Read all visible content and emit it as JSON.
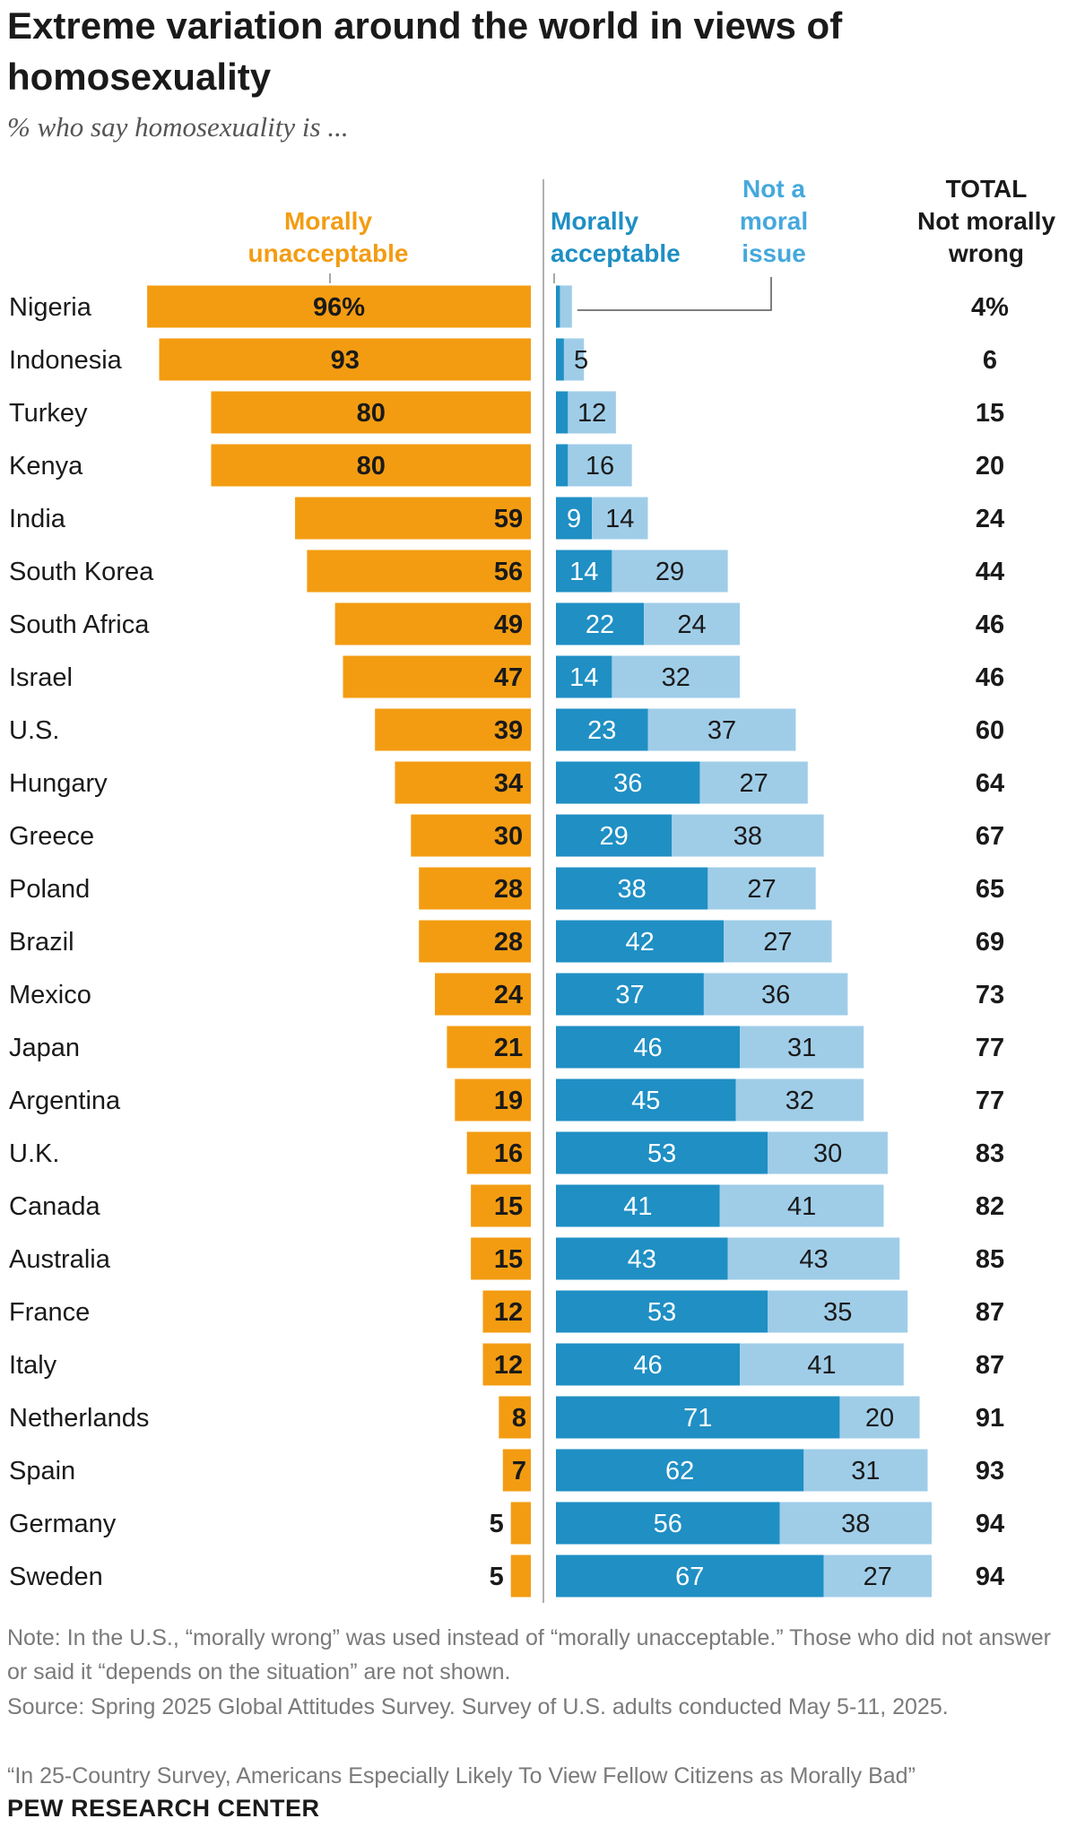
{
  "title": "Extreme variation around the world in views of homosexuality",
  "subtitle": "% who say homosexuality is ...",
  "colors": {
    "unacceptable": "#F39C12",
    "acceptable": "#1F8FC4",
    "not_moral_issue": "#9FCDE8",
    "unacceptable_text": "#F39C12",
    "acceptable_text": "#1F8FC4",
    "not_moral_issue_text": "#45A8DD"
  },
  "chart_data": {
    "type": "bar",
    "layout": "diverging stacked horizontal bar",
    "headers": {
      "unacceptable": [
        "Morally",
        "unacceptable"
      ],
      "acceptable": [
        "Morally",
        "acceptable"
      ],
      "not_moral_issue": [
        "Not a",
        "moral",
        "issue"
      ],
      "total": [
        "TOTAL",
        "Not morally",
        "wrong"
      ]
    },
    "categories": [
      "Nigeria",
      "Indonesia",
      "Turkey",
      "Kenya",
      "India",
      "South Korea",
      "South Africa",
      "Israel",
      "U.S.",
      "Hungary",
      "Greece",
      "Poland",
      "Brazil",
      "Mexico",
      "Japan",
      "Argentina",
      "U.K.",
      "Canada",
      "Australia",
      "France",
      "Italy",
      "Netherlands",
      "Spain",
      "Germany",
      "Sweden"
    ],
    "series": [
      {
        "name": "Morally unacceptable",
        "values": [
          96,
          93,
          80,
          80,
          59,
          56,
          49,
          47,
          39,
          34,
          30,
          28,
          28,
          24,
          21,
          19,
          16,
          15,
          15,
          12,
          12,
          8,
          7,
          5,
          5
        ]
      },
      {
        "name": "Morally acceptable",
        "values": [
          1,
          2,
          3,
          3,
          9,
          14,
          22,
          14,
          23,
          36,
          29,
          38,
          42,
          37,
          46,
          45,
          53,
          41,
          43,
          53,
          46,
          71,
          62,
          56,
          67
        ]
      },
      {
        "name": "Not a moral issue",
        "values": [
          3,
          5,
          12,
          16,
          14,
          29,
          24,
          32,
          37,
          27,
          38,
          27,
          27,
          36,
          31,
          32,
          30,
          41,
          43,
          35,
          41,
          20,
          31,
          38,
          27
        ]
      },
      {
        "name": "TOTAL Not morally wrong",
        "values": [
          4,
          6,
          15,
          20,
          24,
          44,
          46,
          46,
          60,
          64,
          67,
          65,
          69,
          73,
          77,
          77,
          83,
          82,
          85,
          87,
          87,
          91,
          93,
          94,
          94
        ]
      }
    ],
    "label_texts": {
      "unacceptable": [
        "96%",
        "93",
        "80",
        "80",
        "59",
        "56",
        "49",
        "47",
        "39",
        "34",
        "30",
        "28",
        "28",
        "24",
        "21",
        "19",
        "16",
        "15",
        "15",
        "12",
        "12",
        "8",
        "7",
        "5",
        "5"
      ],
      "acceptable": [
        "",
        "",
        "",
        "",
        "9",
        "14",
        "22",
        "14",
        "23",
        "36",
        "29",
        "38",
        "42",
        "37",
        "46",
        "45",
        "53",
        "41",
        "43",
        "53",
        "46",
        "71",
        "62",
        "56",
        "67"
      ],
      "not_moral_issue": [
        "",
        "5",
        "12",
        "16",
        "14",
        "29",
        "24",
        "32",
        "37",
        "27",
        "38",
        "27",
        "27",
        "36",
        "31",
        "32",
        "30",
        "41",
        "43",
        "35",
        "41",
        "20",
        "31",
        "38",
        "27"
      ],
      "total": [
        "4%",
        "6",
        "15",
        "20",
        "24",
        "44",
        "46",
        "46",
        "60",
        "64",
        "67",
        "65",
        "69",
        "73",
        "77",
        "77",
        "83",
        "82",
        "85",
        "87",
        "87",
        "91",
        "93",
        "94",
        "94"
      ]
    }
  },
  "notes": {
    "note": "Note: In the U.S., “morally wrong” was used instead of “morally unacceptable.” Those who did not answer or said it “depends on the situation” are not shown.",
    "source": "Source: Spring 2025 Global Attitudes Survey. Survey of U.S. adults conducted May 5-11, 2025.",
    "report": "“In 25-Country Survey, Americans Especially Likely To View Fellow Citizens as Morally Bad”"
  },
  "brand": "PEW RESEARCH CENTER"
}
